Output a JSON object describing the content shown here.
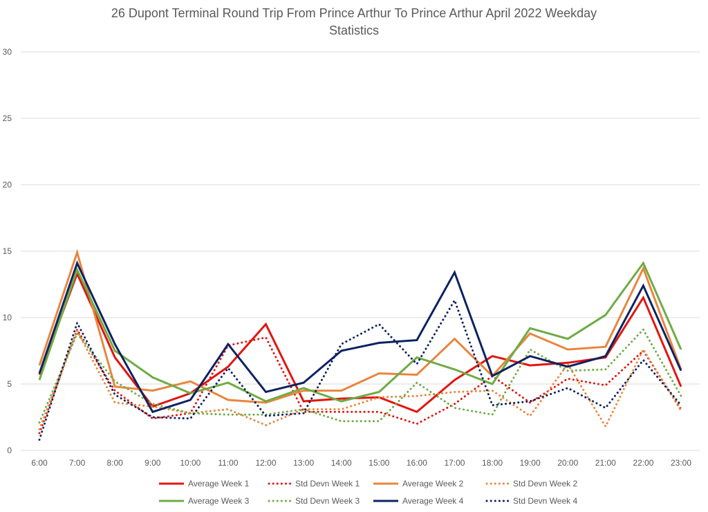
{
  "chart_data": {
    "type": "line",
    "title_lines": [
      "26 Dupont Terminal Round Trip From Prince Arthur To Prince Arthur April 2022 Weekday",
      "Statistics"
    ],
    "xlabel": "",
    "ylabel": "",
    "ylim": [
      0,
      30
    ],
    "yticks": [
      0,
      5,
      10,
      15,
      20,
      25,
      30
    ],
    "grid": true,
    "legend_position": "bottom",
    "categories": [
      "6:00",
      "7:00",
      "8:00",
      "9:00",
      "10:00",
      "11:00",
      "12:00",
      "13:00",
      "14:00",
      "15:00",
      "16:00",
      "17:00",
      "18:00",
      "19:00",
      "20:00",
      "21:00",
      "22:00",
      "23:00"
    ],
    "series": [
      {
        "name": "Average Week 1",
        "color": "#e3140f",
        "dash": "solid",
        "values": [
          5.7,
          13.3,
          7.0,
          3.3,
          4.3,
          6.3,
          9.5,
          3.7,
          3.9,
          4.0,
          2.9,
          5.3,
          7.1,
          6.4,
          6.6,
          7.0,
          11.5,
          4.8
        ]
      },
      {
        "name": "Std Devn Week 1",
        "color": "#e3140f",
        "dash": "dotted",
        "values": [
          1.3,
          9.1,
          4.5,
          2.4,
          2.8,
          7.9,
          8.5,
          2.9,
          2.9,
          2.9,
          2.0,
          3.5,
          5.6,
          3.6,
          5.4,
          4.9,
          7.5,
          3.1
        ]
      },
      {
        "name": "Average Week 2",
        "color": "#e9853e",
        "dash": "solid",
        "values": [
          6.4,
          14.9,
          4.8,
          4.5,
          5.2,
          3.8,
          3.6,
          4.5,
          4.5,
          5.8,
          5.7,
          8.4,
          5.6,
          8.8,
          7.6,
          7.8,
          13.7,
          6.1
        ]
      },
      {
        "name": "Std Devn Week 2",
        "color": "#e9853e",
        "dash": "dotted",
        "values": [
          1.6,
          9.0,
          3.6,
          3.3,
          2.8,
          3.1,
          1.9,
          3.1,
          3.1,
          4.0,
          4.1,
          4.4,
          4.5,
          2.6,
          6.5,
          1.8,
          7.6,
          3.0
        ]
      },
      {
        "name": "Average Week 3",
        "color": "#6fab46",
        "dash": "solid",
        "values": [
          5.3,
          13.6,
          7.5,
          5.5,
          4.3,
          5.1,
          3.7,
          4.7,
          3.7,
          4.4,
          7.0,
          6.1,
          5.0,
          9.2,
          8.4,
          10.2,
          14.1,
          7.6
        ]
      },
      {
        "name": "Std Devn Week 3",
        "color": "#6fab46",
        "dash": "dotted",
        "values": [
          2.1,
          8.8,
          5.2,
          3.5,
          2.8,
          2.7,
          2.7,
          3.1,
          2.2,
          2.2,
          5.1,
          3.2,
          2.7,
          7.6,
          6.0,
          6.1,
          9.1,
          4.1
        ]
      },
      {
        "name": "Average Week 4",
        "color": "#0d2261",
        "dash": "solid",
        "values": [
          5.8,
          14.1,
          8.0,
          2.9,
          3.8,
          8.0,
          4.4,
          5.1,
          7.5,
          8.1,
          8.3,
          13.4,
          5.6,
          7.1,
          6.3,
          7.1,
          12.4,
          6.0
        ]
      },
      {
        "name": "Std Devn Week 4",
        "color": "#0d2261",
        "dash": "dotted",
        "values": [
          0.8,
          9.6,
          4.2,
          2.5,
          2.4,
          6.2,
          2.6,
          2.8,
          8.0,
          9.5,
          6.5,
          11.3,
          3.4,
          3.7,
          4.7,
          3.2,
          6.8,
          3.4
        ]
      }
    ]
  }
}
